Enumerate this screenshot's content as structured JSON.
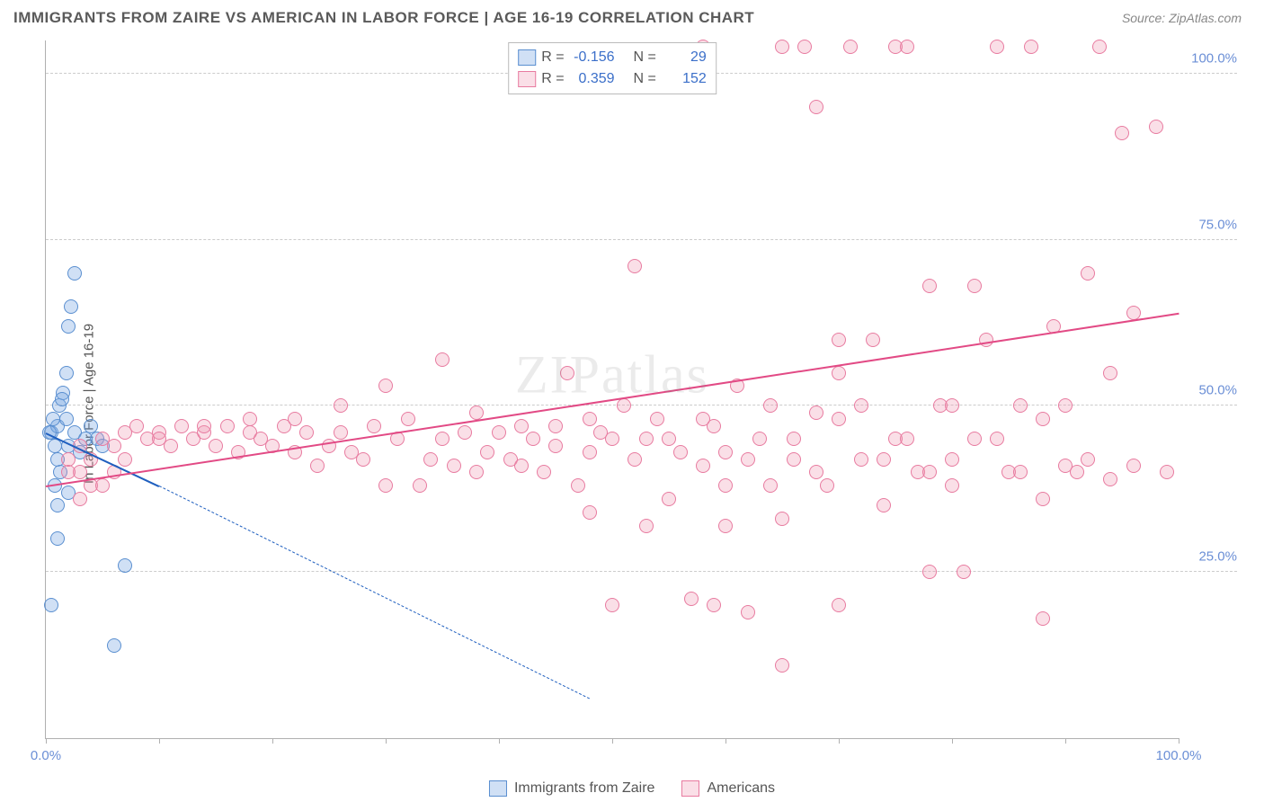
{
  "header": {
    "title": "IMMIGRANTS FROM ZAIRE VS AMERICAN IN LABOR FORCE | AGE 16-19 CORRELATION CHART",
    "source_prefix": "Source: ",
    "source_name": "ZipAtlas.com"
  },
  "chart": {
    "type": "scatter",
    "ylabel": "In Labor Force | Age 16-19",
    "watermark": "ZIPatlas",
    "background_color": "#ffffff",
    "grid_color": "#cccccc",
    "axis_color": "#b0b0b0",
    "tick_label_color": "#6b8fd6",
    "xlim": [
      0,
      100
    ],
    "ylim": [
      0,
      105
    ],
    "yticks": [
      25,
      50,
      75,
      100
    ],
    "ytick_labels": [
      "25.0%",
      "50.0%",
      "75.0%",
      "100.0%"
    ],
    "xticks_minor": [
      0,
      10,
      20,
      30,
      40,
      50,
      60,
      70,
      80,
      90,
      100
    ],
    "xtick_labels": [
      {
        "pos": 0,
        "text": "0.0%"
      },
      {
        "pos": 100,
        "text": "100.0%"
      }
    ],
    "marker_radius": 8,
    "marker_stroke_width": 1.5,
    "series": [
      {
        "name": "Immigrants from Zaire",
        "color_fill": "rgba(120,165,225,0.35)",
        "color_stroke": "#5a8fd0",
        "trend_color": "#1f5fbf",
        "trend_dash_color": "#1f5fbf",
        "R": "-0.156",
        "N": "29",
        "trend": {
          "x1": 0,
          "y1": 46,
          "x2": 10,
          "y2": 38
        },
        "trend_ext": {
          "x1": 10,
          "y1": 38,
          "x2": 48,
          "y2": 6
        },
        "points": [
          [
            0.5,
            46
          ],
          [
            0.8,
            44
          ],
          [
            1.0,
            47
          ],
          [
            1.2,
            50
          ],
          [
            1.0,
            30
          ],
          [
            1.5,
            52
          ],
          [
            1.8,
            55
          ],
          [
            2.0,
            62
          ],
          [
            2.2,
            65
          ],
          [
            2.5,
            70
          ],
          [
            0.5,
            20
          ],
          [
            0.8,
            38
          ],
          [
            2.0,
            44
          ],
          [
            2.5,
            46
          ],
          [
            3.0,
            43
          ],
          [
            1.0,
            42
          ],
          [
            1.3,
            40
          ],
          [
            1.8,
            48
          ],
          [
            4.0,
            47
          ],
          [
            4.5,
            45
          ],
          [
            6.0,
            14
          ],
          [
            7.0,
            26
          ],
          [
            1.0,
            35
          ],
          [
            2.0,
            37
          ],
          [
            3.5,
            45
          ],
          [
            0.3,
            46
          ],
          [
            0.6,
            48
          ],
          [
            1.4,
            51
          ],
          [
            5.0,
            44
          ]
        ]
      },
      {
        "name": "Americans",
        "color_fill": "rgba(240,150,175,0.30)",
        "color_stroke": "#e87ba0",
        "trend_color": "#e24a85",
        "R": "0.359",
        "N": "152",
        "trend": {
          "x1": 0,
          "y1": 38,
          "x2": 100,
          "y2": 64
        },
        "points": [
          [
            3,
            40
          ],
          [
            4,
            42
          ],
          [
            5,
            45
          ],
          [
            6,
            44
          ],
          [
            7,
            46
          ],
          [
            8,
            47
          ],
          [
            9,
            45
          ],
          [
            10,
            46
          ],
          [
            11,
            44
          ],
          [
            12,
            47
          ],
          [
            13,
            45
          ],
          [
            14,
            46
          ],
          [
            15,
            44
          ],
          [
            16,
            47
          ],
          [
            17,
            43
          ],
          [
            18,
            46
          ],
          [
            19,
            45
          ],
          [
            20,
            44
          ],
          [
            21,
            47
          ],
          [
            22,
            43
          ],
          [
            23,
            46
          ],
          [
            24,
            41
          ],
          [
            25,
            44
          ],
          [
            26,
            46
          ],
          [
            27,
            43
          ],
          [
            28,
            42
          ],
          [
            29,
            47
          ],
          [
            30,
            38
          ],
          [
            31,
            45
          ],
          [
            32,
            48
          ],
          [
            33,
            38
          ],
          [
            34,
            42
          ],
          [
            35,
            45
          ],
          [
            36,
            41
          ],
          [
            37,
            46
          ],
          [
            38,
            40
          ],
          [
            39,
            43
          ],
          [
            40,
            46
          ],
          [
            41,
            42
          ],
          [
            42,
            41
          ],
          [
            43,
            45
          ],
          [
            44,
            40
          ],
          [
            45,
            47
          ],
          [
            46,
            55
          ],
          [
            47,
            38
          ],
          [
            48,
            43
          ],
          [
            49,
            46
          ],
          [
            50,
            20
          ],
          [
            51,
            50
          ],
          [
            52,
            71
          ],
          [
            53,
            45
          ],
          [
            54,
            48
          ],
          [
            55,
            36
          ],
          [
            56,
            43
          ],
          [
            57,
            21
          ],
          [
            58,
            41
          ],
          [
            59,
            47
          ],
          [
            60,
            38
          ],
          [
            61,
            53
          ],
          [
            62,
            19
          ],
          [
            63,
            45
          ],
          [
            64,
            50
          ],
          [
            65,
            33
          ],
          [
            66,
            42
          ],
          [
            67,
            104
          ],
          [
            68,
            49
          ],
          [
            69,
            38
          ],
          [
            70,
            55
          ],
          [
            71,
            104
          ],
          [
            72,
            42
          ],
          [
            73,
            60
          ],
          [
            74,
            35
          ],
          [
            75,
            104
          ],
          [
            76,
            104
          ],
          [
            77,
            40
          ],
          [
            78,
            68
          ],
          [
            79,
            50
          ],
          [
            80,
            38
          ],
          [
            81,
            25
          ],
          [
            82,
            45
          ],
          [
            83,
            60
          ],
          [
            84,
            104
          ],
          [
            85,
            40
          ],
          [
            86,
            50
          ],
          [
            87,
            104
          ],
          [
            88,
            36
          ],
          [
            89,
            62
          ],
          [
            90,
            41
          ],
          [
            91,
            40
          ],
          [
            92,
            70
          ],
          [
            93,
            104
          ],
          [
            94,
            39
          ],
          [
            95,
            91
          ],
          [
            96,
            41
          ],
          [
            88,
            18
          ],
          [
            65,
            11
          ],
          [
            59,
            20
          ],
          [
            70,
            20
          ],
          [
            78,
            25
          ],
          [
            48,
            34
          ],
          [
            53,
            32
          ],
          [
            3,
            36
          ],
          [
            4,
            38
          ],
          [
            2,
            40
          ],
          [
            5,
            38
          ],
          [
            6,
            40
          ],
          [
            7,
            42
          ],
          [
            2,
            42
          ],
          [
            3,
            44
          ],
          [
            35,
            57
          ],
          [
            38,
            49
          ],
          [
            42,
            47
          ],
          [
            45,
            44
          ],
          [
            48,
            48
          ],
          [
            50,
            45
          ],
          [
            52,
            42
          ],
          [
            55,
            45
          ],
          [
            58,
            48
          ],
          [
            60,
            43
          ],
          [
            30,
            53
          ],
          [
            26,
            50
          ],
          [
            22,
            48
          ],
          [
            18,
            48
          ],
          [
            14,
            47
          ],
          [
            10,
            45
          ],
          [
            65,
            104
          ],
          [
            68,
            95
          ],
          [
            70,
            60
          ],
          [
            75,
            45
          ],
          [
            80,
            50
          ],
          [
            58,
            104
          ],
          [
            60,
            32
          ],
          [
            62,
            42
          ],
          [
            64,
            38
          ],
          [
            66,
            45
          ],
          [
            68,
            40
          ],
          [
            70,
            48
          ],
          [
            72,
            50
          ],
          [
            74,
            42
          ],
          [
            76,
            45
          ],
          [
            78,
            40
          ],
          [
            80,
            42
          ],
          [
            82,
            68
          ],
          [
            84,
            45
          ],
          [
            86,
            40
          ],
          [
            88,
            48
          ],
          [
            90,
            50
          ],
          [
            92,
            42
          ],
          [
            94,
            55
          ],
          [
            96,
            64
          ],
          [
            98,
            92
          ],
          [
            99,
            40
          ]
        ]
      }
    ]
  },
  "legend_top": {
    "R_label": "R =",
    "N_label": "N ="
  },
  "legend_bottom": {
    "items": [
      "Immigrants from Zaire",
      "Americans"
    ]
  }
}
